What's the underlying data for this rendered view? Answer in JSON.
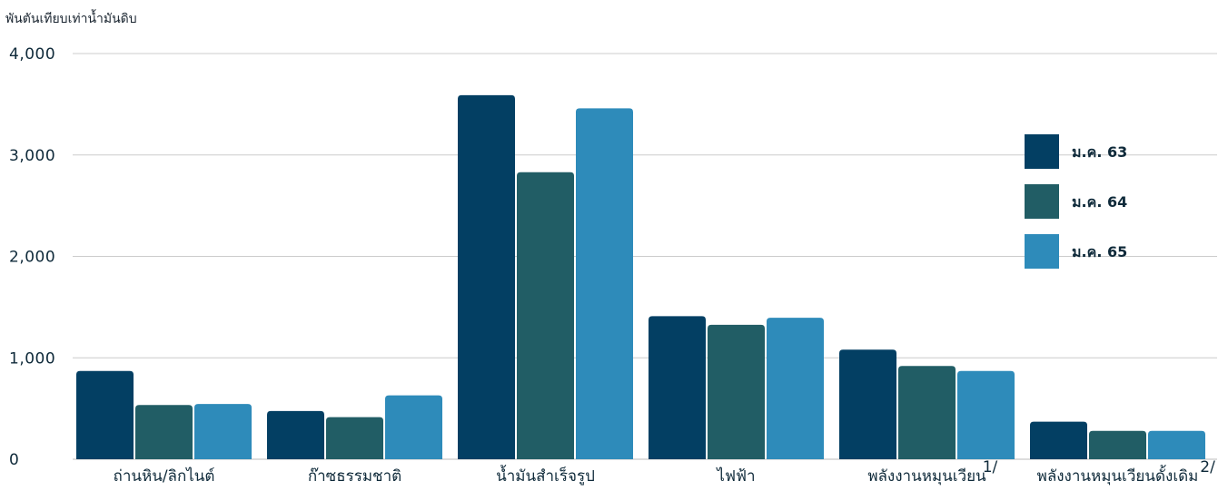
{
  "chart_data": {
    "type": "bar",
    "ylabel": "พันตันเทียบเท่าน้ำมันดิบ",
    "ylim": [
      0,
      4000
    ],
    "yticks": [
      0,
      1000,
      2000,
      3000,
      4000
    ],
    "ytick_labels": [
      "0",
      "1,000",
      "2,000",
      "3,000",
      "4,000"
    ],
    "grid": true,
    "legend_position": "right",
    "categories": [
      {
        "label": "ถ่านหิน/ลิกไนต์",
        "sup": ""
      },
      {
        "label": "ก๊าซธรรมชาติ",
        "sup": ""
      },
      {
        "label": "น้ำมันสำเร็จรูป",
        "sup": ""
      },
      {
        "label": "ไฟฟ้า",
        "sup": ""
      },
      {
        "label": "พลังงานหมุนเวียน",
        "sup": "1/"
      },
      {
        "label": "พลังงานหมุนเวียนดั้งเดิม",
        "sup": "2/"
      }
    ],
    "series": [
      {
        "name": "ม.ค. 63",
        "color": "#033f63",
        "values": [
          870,
          475,
          3590,
          1410,
          1080,
          370
        ]
      },
      {
        "name": "ม.ค. 64",
        "color": "#215d65",
        "values": [
          535,
          415,
          2830,
          1325,
          920,
          280
        ]
      },
      {
        "name": "ม.ค. 65",
        "color": "#2e8bba",
        "values": [
          545,
          630,
          3460,
          1395,
          870,
          280
        ]
      }
    ]
  }
}
